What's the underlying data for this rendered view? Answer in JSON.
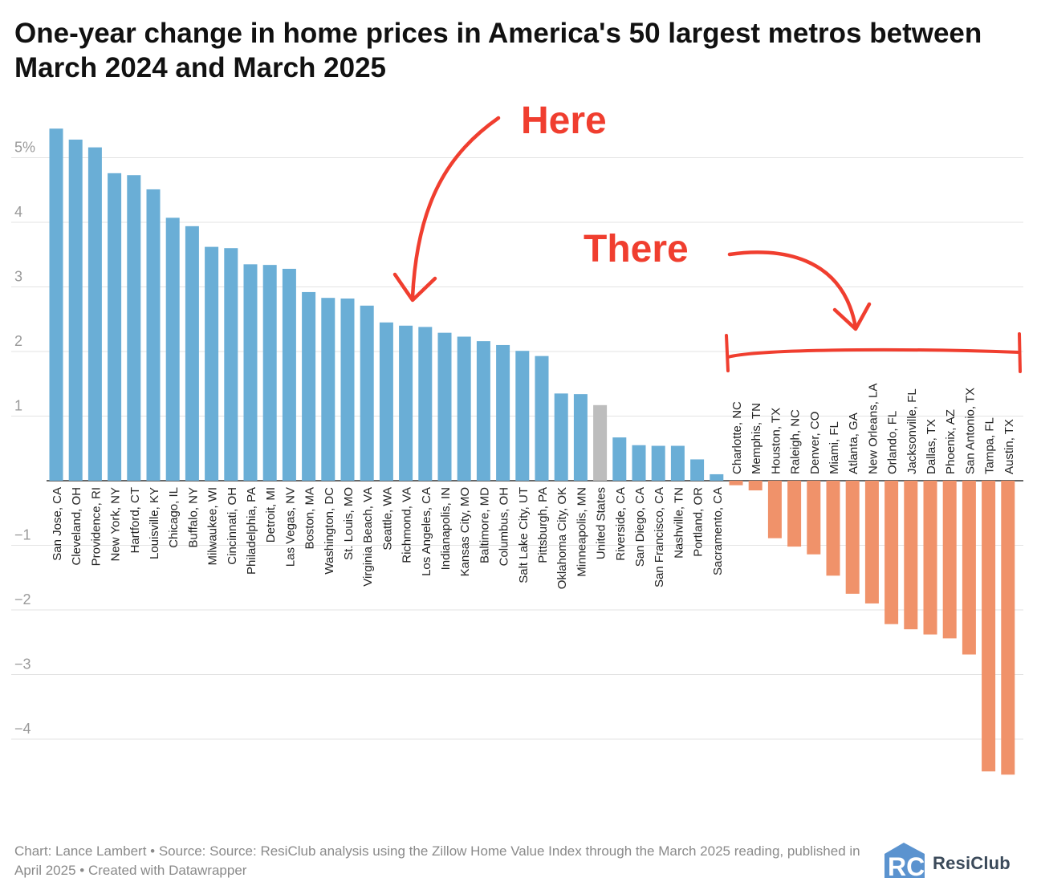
{
  "title": "One-year change in home prices in America's 50 largest metros between March 2024 and March 2025",
  "footer": {
    "text": "Chart: Lance Lambert • Source: Source: ResiClub analysis using the Zillow Home Value Index through the March 2025 reading, published in April 2025 • Created with Datawrapper"
  },
  "logo": {
    "name": "ResiClub",
    "mark": "RC"
  },
  "annotations": {
    "here": "Here",
    "there": "There",
    "color": "#f03e2f"
  },
  "colors": {
    "positive": "#6aaed6",
    "negative": "#f0926a",
    "highlight": "#bdbdbd",
    "grid": "#e3e3e3",
    "axis_text": "#9a9a9a"
  },
  "chart_data": {
    "type": "bar",
    "title": "One-year change in home prices in America's 50 largest metros between March 2024 and March 2025",
    "xlabel": "",
    "ylabel": "",
    "ylim": [
      -4.6,
      5.6
    ],
    "yticks": [
      5,
      4,
      3,
      2,
      1,
      -1,
      -2,
      -3,
      -4
    ],
    "ytick_labels": [
      "5%",
      "4",
      "3",
      "2",
      "1",
      "−1",
      "−2",
      "−3",
      "−4"
    ],
    "grid": true,
    "highlight_category": "United States",
    "categories": [
      "San Jose, CA",
      "Cleveland, OH",
      "Providence, RI",
      "New York, NY",
      "Hartford, CT",
      "Louisville, KY",
      "Chicago, IL",
      "Buffalo, NY",
      "Milwaukee, WI",
      "Cincinnati, OH",
      "Philadelphia, PA",
      "Detroit, MI",
      "Las Vegas, NV",
      "Boston, MA",
      "Washington, DC",
      "St. Louis, MO",
      "Virginia Beach, VA",
      "Seattle, WA",
      "Richmond, VA",
      "Los Angeles, CA",
      "Indianapolis, IN",
      "Kansas City, MO",
      "Baltimore, MD",
      "Columbus, OH",
      "Salt Lake City, UT",
      "Pittsburgh, PA",
      "Oklahoma City, OK",
      "Minneapolis, MN",
      "United States",
      "Riverside, CA",
      "San Diego, CA",
      "San Francisco, CA",
      "Nashville, TN",
      "Portland, OR",
      "Sacramento, CA",
      "Charlotte, NC",
      "Memphis, TN",
      "Houston, TX",
      "Raleigh, NC",
      "Denver, CO",
      "Miami, FL",
      "Atlanta, GA",
      "New Orleans, LA",
      "Orlando, FL",
      "Jacksonville, FL",
      "Dallas, TX",
      "Phoenix, AZ",
      "San Antonio, TX",
      "Tampa, FL",
      "Austin, TX"
    ],
    "values": [
      5.45,
      5.28,
      5.16,
      4.76,
      4.73,
      4.51,
      4.07,
      3.94,
      3.62,
      3.6,
      3.35,
      3.34,
      3.28,
      2.92,
      2.83,
      2.82,
      2.71,
      2.45,
      2.4,
      2.38,
      2.29,
      2.23,
      2.16,
      2.1,
      2.01,
      1.93,
      1.35,
      1.34,
      1.17,
      0.67,
      0.55,
      0.54,
      0.54,
      0.33,
      0.1,
      -0.07,
      -0.15,
      -0.89,
      -1.02,
      -1.14,
      -1.47,
      -1.75,
      -1.9,
      -2.22,
      -2.3,
      -2.38,
      -2.44,
      -2.69,
      -4.5,
      -4.55
    ]
  }
}
